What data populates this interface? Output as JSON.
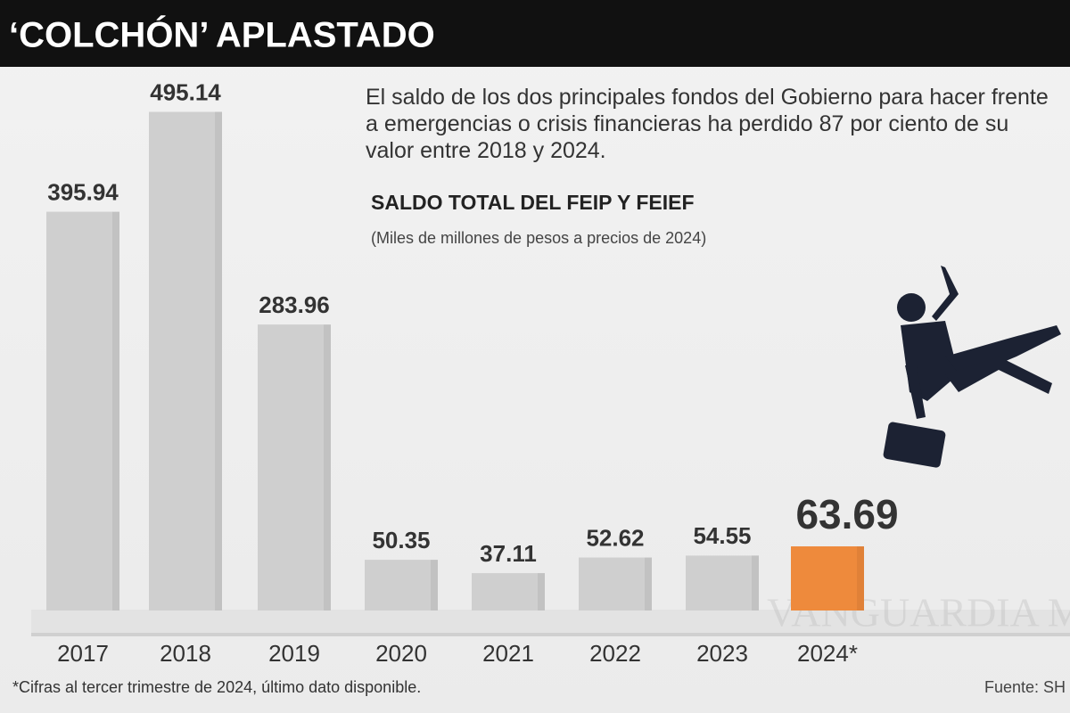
{
  "chart_data": {
    "type": "bar",
    "title": "‘COLCHÓN’ APLASTADO",
    "description": "El saldo de los dos principales fondos del Gobierno para hacer frente a emergencias o crisis financieras ha perdido 87 por ciento de su valor entre 2018 y 2024.",
    "chart_title": "SALDO TOTAL DEL FEIP Y FEIEF",
    "subtitle": "(Miles de millones de pesos a precios de 2024)",
    "categories": [
      "2017",
      "2018",
      "2019",
      "2020",
      "2021",
      "2022",
      "2023",
      "2024*"
    ],
    "values": [
      395.94,
      495.14,
      283.96,
      50.35,
      37.11,
      52.62,
      54.55,
      63.69
    ],
    "colors": [
      "#cfcfcf",
      "#cfcfcf",
      "#cfcfcf",
      "#cfcfcf",
      "#cfcfcf",
      "#cfcfcf",
      "#cfcfcf",
      "#ee8a3c"
    ],
    "note": "*Cifras al tercer trimestre de 2024, último dato disponible.",
    "source": "Fuente: SH",
    "watermark": "VANGUARDIA MX"
  }
}
